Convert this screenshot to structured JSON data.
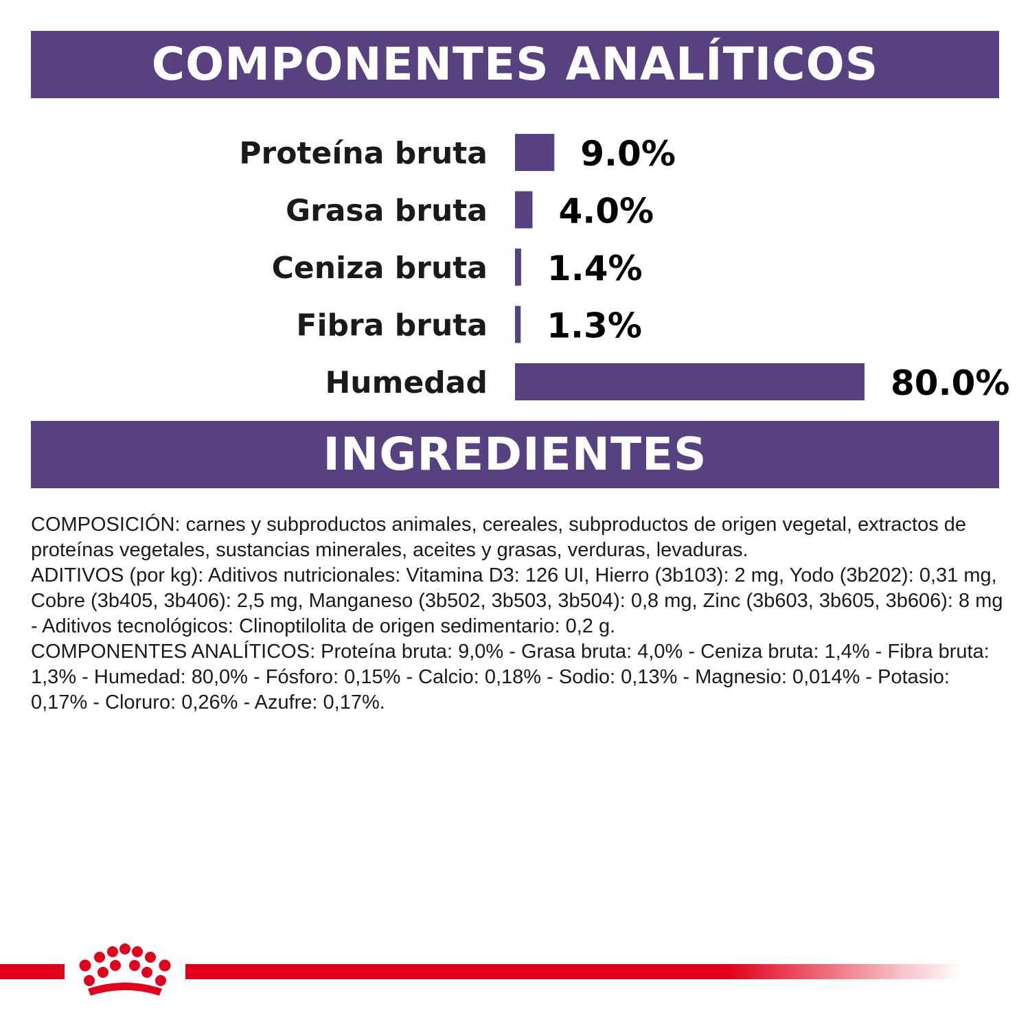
{
  "headers": {
    "analytic": "COMPONENTES ANALÍTICOS",
    "ingredients": "INGREDIENTES"
  },
  "colors": {
    "header_bg": "#574180",
    "bar": "#574180",
    "brand_red": "#e2001a"
  },
  "chart_data": {
    "type": "bar",
    "orientation": "horizontal",
    "title": "COMPONENTES ANALÍTICOS",
    "categories": [
      "Proteína bruta",
      "Grasa bruta",
      "Ceniza bruta",
      "Fibra bruta",
      "Humedad"
    ],
    "values": [
      9.0,
      4.0,
      1.4,
      1.3,
      80.0
    ],
    "value_labels": [
      "9.0%",
      "4.0%",
      "1.4%",
      "1.3%",
      "80.0%"
    ],
    "unit": "%",
    "xlim": [
      0,
      80
    ],
    "grid": false,
    "legend": "none"
  },
  "ingredients": {
    "composition": "COMPOSICIÓN: carnes y subproductos animales, cereales, subproductos de origen vegetal, extractos de proteínas vegetales, sustancias minerales, aceites y grasas, verduras, levaduras.",
    "additives": "ADITIVOS (por kg): Aditivos nutricionales: Vitamina D3: 126 UI, Hierro (3b103): 2 mg, Yodo (3b202): 0,31 mg, Cobre (3b405, 3b406): 2,5 mg, Manganeso (3b502, 3b503, 3b504): 0,8 mg, Zinc (3b603, 3b605, 3b606): 8 mg - Aditivos tecnológicos: Clinoptilolita de origen sedimentario: 0,2 g.",
    "analytic": "COMPONENTES ANALÍTICOS: Proteína bruta: 9,0% - Grasa bruta: 4,0% - Ceniza bruta: 1,4% - Fibra bruta: 1,3% - Humedad: 80,0% - Fósforo: 0,15% - Calcio: 0,18% - Sodio: 0,13% - Magnesio: 0,014% - Potasio: 0,17% - Cloruro: 0,26% - Azufre: 0,17%."
  },
  "logo": {
    "icon": "royal-canin-crown-icon"
  }
}
